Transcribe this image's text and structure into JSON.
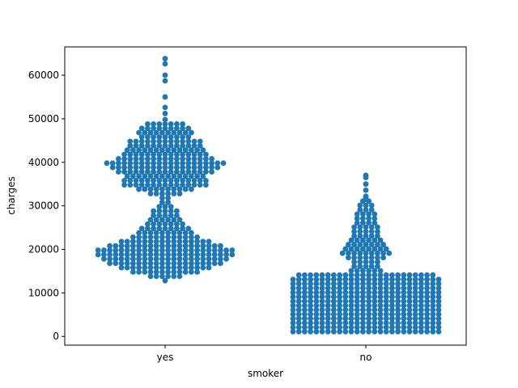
{
  "chart_data": {
    "type": "scatter",
    "subtype": "swarm",
    "title": "",
    "xlabel": "smoker",
    "ylabel": "charges",
    "categories": [
      "yes",
      "no"
    ],
    "ylim": [
      -2000,
      66500
    ],
    "yticks": [
      0,
      10000,
      20000,
      30000,
      40000,
      50000,
      60000
    ],
    "ytick_labels": [
      "0",
      "10000",
      "20000",
      "30000",
      "40000",
      "50000",
      "60000"
    ],
    "grid": false,
    "legend": "none",
    "point_color": "#1f77b4",
    "series": [
      {
        "category": "yes",
        "approx_count": 274,
        "range": [
          12800,
          63800
        ],
        "notable_values": [
          63800,
          62600,
          60000,
          58700,
          55000,
          52600,
          51200
        ],
        "density_profile": [
          [
            12800,
            1
          ],
          [
            13800,
            6
          ],
          [
            14800,
            12
          ],
          [
            15800,
            16
          ],
          [
            16800,
            20
          ],
          [
            17800,
            22
          ],
          [
            18800,
            24
          ],
          [
            19800,
            24
          ],
          [
            20800,
            20
          ],
          [
            21800,
            16
          ],
          [
            22800,
            12
          ],
          [
            23800,
            10
          ],
          [
            24800,
            9
          ],
          [
            25800,
            7
          ],
          [
            26800,
            6
          ],
          [
            27800,
            5
          ],
          [
            28800,
            5
          ],
          [
            29800,
            3
          ],
          [
            30800,
            2
          ],
          [
            31800,
            2
          ],
          [
            32800,
            6
          ],
          [
            33800,
            10
          ],
          [
            34800,
            15
          ],
          [
            35800,
            15
          ],
          [
            36800,
            14
          ],
          [
            37800,
            17
          ],
          [
            38800,
            19
          ],
          [
            39800,
            21
          ],
          [
            40800,
            17
          ],
          [
            41800,
            15
          ],
          [
            42800,
            14
          ],
          [
            43800,
            13
          ],
          [
            44800,
            13
          ],
          [
            45800,
            9
          ],
          [
            46800,
            10
          ],
          [
            47800,
            9
          ],
          [
            48800,
            7
          ],
          [
            49800,
            1
          ]
        ]
      },
      {
        "category": "no",
        "approx_count": 1064,
        "range": [
          1100,
          37000
        ],
        "notable_values": [
          37000,
          36500,
          35000,
          33600,
          32200,
          31500
        ],
        "density_profile": [
          [
            1100,
            26
          ],
          [
            2100,
            26
          ],
          [
            3100,
            26
          ],
          [
            4100,
            26
          ],
          [
            5100,
            26
          ],
          [
            6100,
            26
          ],
          [
            7100,
            26
          ],
          [
            8100,
            26
          ],
          [
            9100,
            26
          ],
          [
            10100,
            26
          ],
          [
            11100,
            26
          ],
          [
            12100,
            26
          ],
          [
            13100,
            26
          ],
          [
            14100,
            24
          ],
          [
            15100,
            6
          ],
          [
            16100,
            5
          ],
          [
            17100,
            5
          ],
          [
            18100,
            7
          ],
          [
            19100,
            9
          ],
          [
            20100,
            8
          ],
          [
            21100,
            7
          ],
          [
            22100,
            6
          ],
          [
            23100,
            5
          ],
          [
            24100,
            5
          ],
          [
            25100,
            5
          ],
          [
            26100,
            4
          ],
          [
            27100,
            4
          ],
          [
            28100,
            4
          ],
          [
            29100,
            3
          ],
          [
            30100,
            3
          ],
          [
            31100,
            2
          ],
          [
            32100,
            1
          ]
        ]
      }
    ]
  }
}
